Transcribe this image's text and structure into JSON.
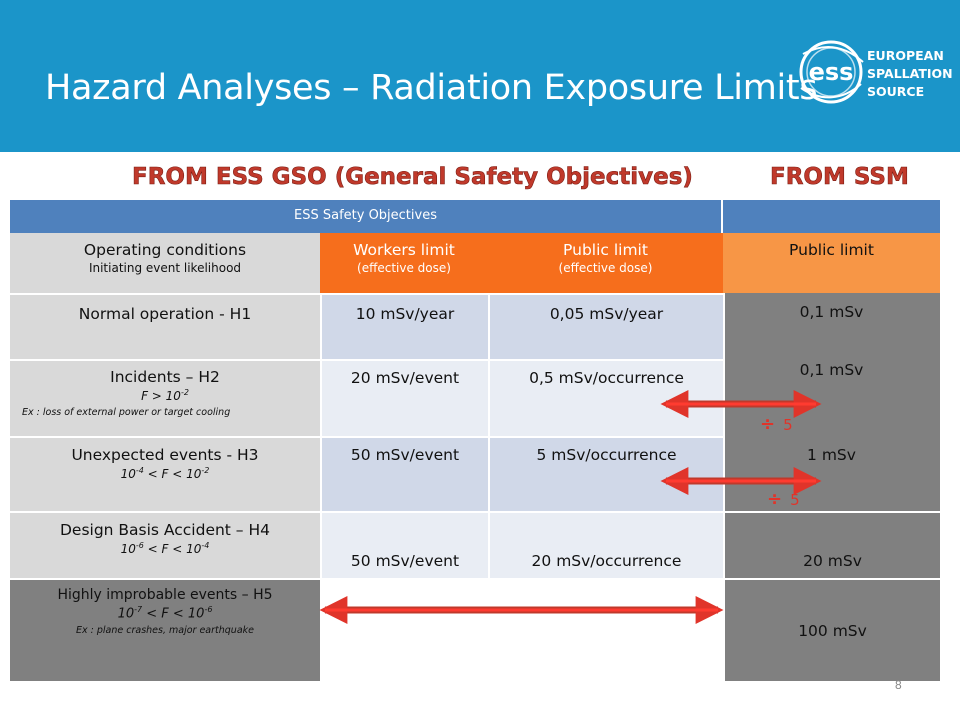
{
  "slide": {
    "title": "Hazard Analyses – Radiation Exposure Limits",
    "page_number": "8",
    "colors": {
      "banner": "#1b95c9",
      "table_header_blue": "#4f81bd",
      "orange_dark": "#f66e1c",
      "orange_light": "#f79646",
      "grey": "#808080",
      "arrow_red": "#e0342a"
    }
  },
  "logo": {
    "line1": "EUROPEAN",
    "line2": "SPALLATION",
    "line3": "SOURCE",
    "mark": "ess",
    "icon": "ess-logo-icon"
  },
  "headers": {
    "left": "FROM ESS GSO (General Safety Objectives)",
    "right": "FROM SSM"
  },
  "table": {
    "top_header": "ESS Safety Objectives",
    "columns": {
      "conditions": {
        "main": "Operating conditions",
        "sub": "Initiating event likelihood"
      },
      "workers": {
        "main": "Workers limit",
        "sub": "(effective dose)"
      },
      "public_gso": {
        "main": "Public limit",
        "sub": "(effective dose)"
      },
      "public_ssm": {
        "main": "Public limit"
      }
    },
    "rows": [
      {
        "main": "Normal operation - H1",
        "workers": "10 mSv/year",
        "public": "0,05 mSv/year",
        "ssm": "0,1 mSv"
      },
      {
        "main": "Incidents – H2",
        "freq_parts": [
          "F > 10",
          "-2"
        ],
        "note": "Ex : loss of external power or target cooling",
        "workers": "20 mSv/event",
        "public": "0,5 mSv/occurrence",
        "ssm": "0,1 mSv"
      },
      {
        "main": "Unexpected events - H3",
        "freq_parts": [
          "10",
          "-4",
          " < F < 10",
          "-2"
        ],
        "workers": "50 mSv/event",
        "public": "5 mSv/occurrence",
        "ssm": "1 mSv"
      },
      {
        "main": "Design Basis Accident – H4",
        "freq_parts": [
          "10",
          "-6",
          " < F < 10",
          "-4"
        ],
        "workers": "50 mSv/event",
        "public": "20 mSv/occurrence",
        "ssm": "20 mSv"
      },
      {
        "main": "Highly improbable events – H5",
        "freq_parts": [
          "10",
          "-7",
          " < F < 10",
          "-6"
        ],
        "note": "Ex : plane crashes, major earthquake",
        "ssm": "100 mSv"
      }
    ],
    "dividers": [
      {
        "symbol": "÷",
        "value": "5"
      },
      {
        "symbol": "÷",
        "value": "5"
      }
    ]
  }
}
